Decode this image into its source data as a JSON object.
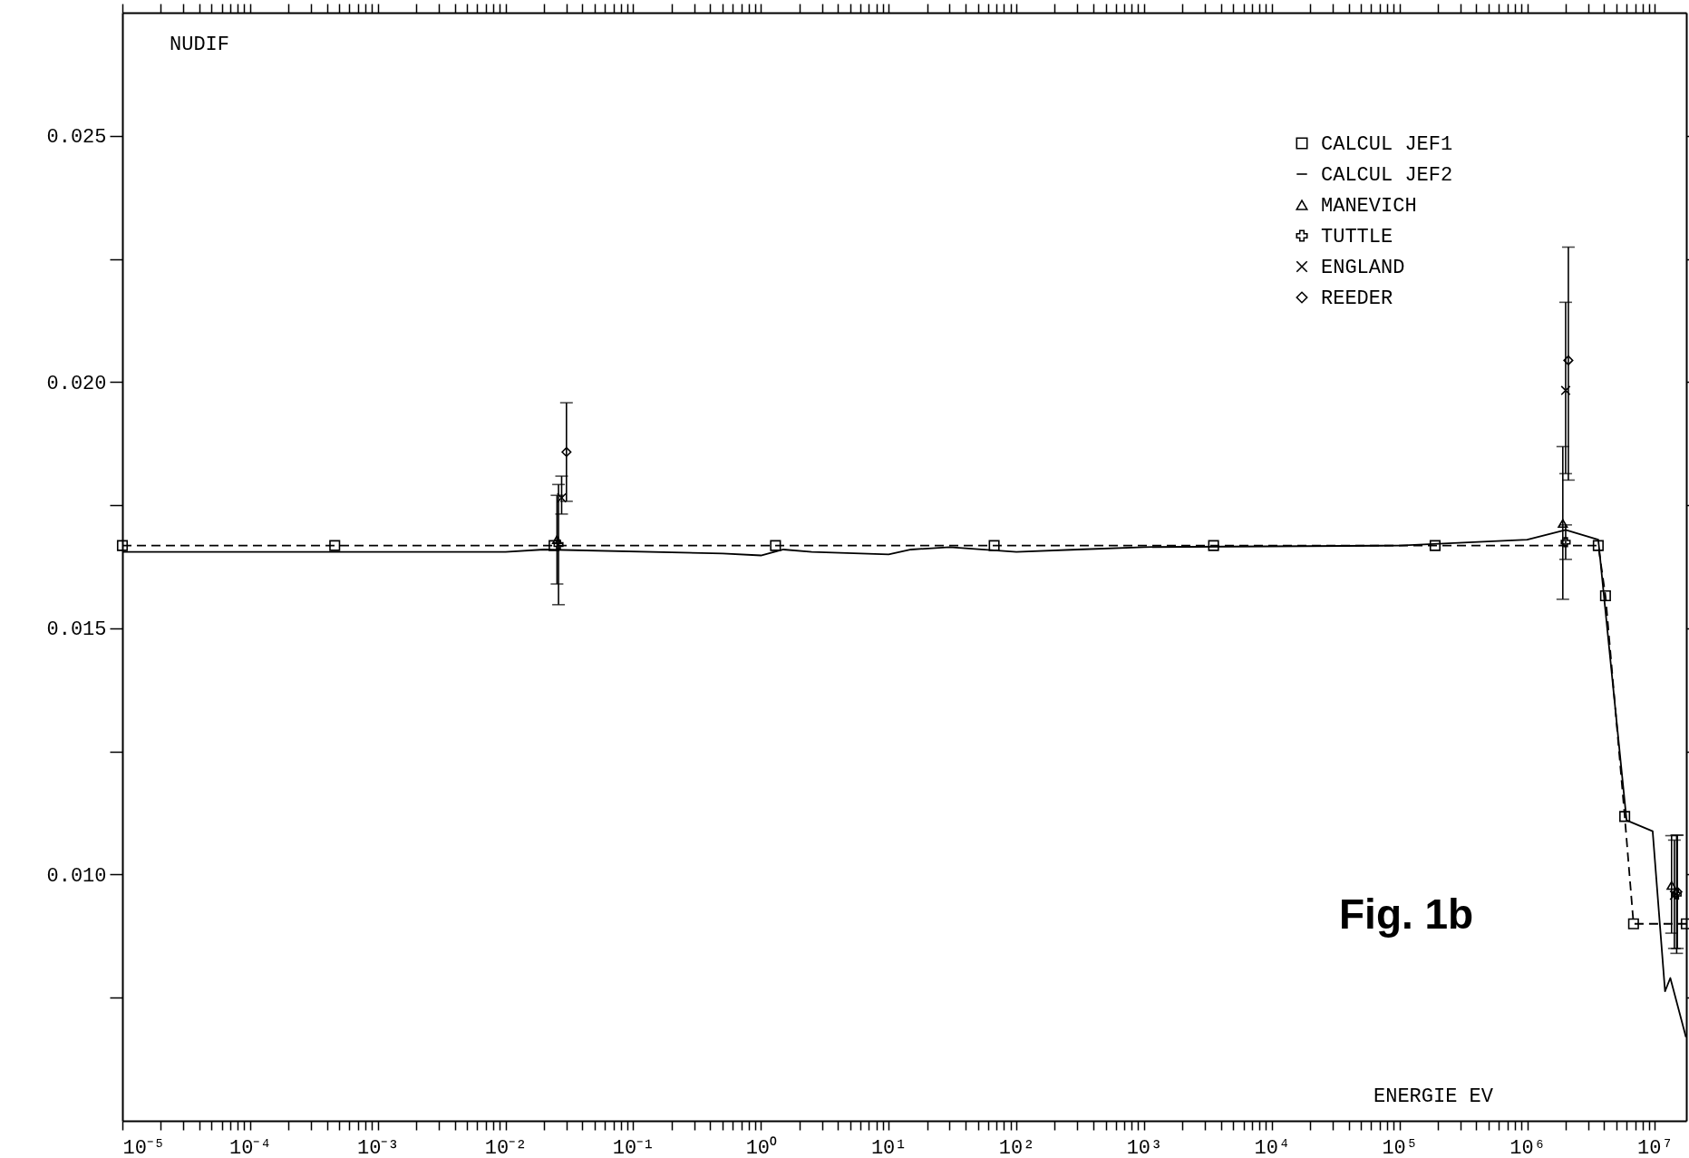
{
  "chart_data": {
    "type": "line",
    "ylabel": "NUDIF",
    "xlabel": "ENERGIE EV",
    "annotations": [
      "Fig. 1b"
    ],
    "log": "x",
    "xlim": [
      1e-05,
      17600000.0
    ],
    "ylim": [
      0.005,
      0.0275
    ],
    "xticks": [
      {
        "value": 1e-05,
        "label": "10⁻⁵"
      },
      {
        "value": 2e-05,
        "label": null
      },
      {
        "value": 3e-05,
        "label": null
      },
      {
        "value": 4e-05,
        "label": null
      },
      {
        "value": 5e-05,
        "label": null
      },
      {
        "value": 6e-05,
        "label": null
      },
      {
        "value": 7e-05,
        "label": null
      },
      {
        "value": 8e-05,
        "label": null
      },
      {
        "value": 9e-05,
        "label": null
      },
      {
        "value": 0.0001,
        "label": "10⁻⁴"
      },
      {
        "value": 0.0002,
        "label": null
      },
      {
        "value": 0.0003,
        "label": null
      },
      {
        "value": 0.0004,
        "label": null
      },
      {
        "value": 0.0005,
        "label": null
      },
      {
        "value": 0.0006,
        "label": null
      },
      {
        "value": 0.0007,
        "label": null
      },
      {
        "value": 0.0008,
        "label": null
      },
      {
        "value": 0.0009,
        "label": null
      },
      {
        "value": 0.001,
        "label": "10⁻³"
      },
      {
        "value": 0.002,
        "label": null
      },
      {
        "value": 0.003,
        "label": null
      },
      {
        "value": 0.004,
        "label": null
      },
      {
        "value": 0.005,
        "label": null
      },
      {
        "value": 0.006,
        "label": null
      },
      {
        "value": 0.007,
        "label": null
      },
      {
        "value": 0.008,
        "label": null
      },
      {
        "value": 0.009,
        "label": null
      },
      {
        "value": 0.01,
        "label": "10⁻²"
      },
      {
        "value": 0.02,
        "label": null
      },
      {
        "value": 0.03,
        "label": null
      },
      {
        "value": 0.04,
        "label": null
      },
      {
        "value": 0.05,
        "label": null
      },
      {
        "value": 0.06,
        "label": null
      },
      {
        "value": 0.07,
        "label": null
      },
      {
        "value": 0.08,
        "label": null
      },
      {
        "value": 0.09,
        "label": null
      },
      {
        "value": 0.1,
        "label": "10⁻¹"
      },
      {
        "value": 0.2,
        "label": null
      },
      {
        "value": 0.3,
        "label": null
      },
      {
        "value": 0.4,
        "label": null
      },
      {
        "value": 0.5,
        "label": null
      },
      {
        "value": 0.6,
        "label": null
      },
      {
        "value": 0.7,
        "label": null
      },
      {
        "value": 0.8,
        "label": null
      },
      {
        "value": 0.9,
        "label": null
      },
      {
        "value": 1,
        "label": "10⁰"
      },
      {
        "value": 2,
        "label": null
      },
      {
        "value": 3,
        "label": null
      },
      {
        "value": 4,
        "label": null
      },
      {
        "value": 5,
        "label": null
      },
      {
        "value": 6,
        "label": null
      },
      {
        "value": 7,
        "label": null
      },
      {
        "value": 8,
        "label": null
      },
      {
        "value": 9,
        "label": null
      },
      {
        "value": 10,
        "label": "10¹"
      },
      {
        "value": 20,
        "label": null
      },
      {
        "value": 30,
        "label": null
      },
      {
        "value": 40,
        "label": null
      },
      {
        "value": 50,
        "label": null
      },
      {
        "value": 60,
        "label": null
      },
      {
        "value": 70,
        "label": null
      },
      {
        "value": 80,
        "label": null
      },
      {
        "value": 90,
        "label": null
      },
      {
        "value": 100,
        "label": "10²"
      },
      {
        "value": 200,
        "label": null
      },
      {
        "value": 300,
        "label": null
      },
      {
        "value": 400,
        "label": null
      },
      {
        "value": 500,
        "label": null
      },
      {
        "value": 600,
        "label": null
      },
      {
        "value": 700,
        "label": null
      },
      {
        "value": 800,
        "label": null
      },
      {
        "value": 900,
        "label": null
      },
      {
        "value": 1000,
        "label": "10³"
      },
      {
        "value": 2000,
        "label": null
      },
      {
        "value": 3000,
        "label": null
      },
      {
        "value": 4000,
        "label": null
      },
      {
        "value": 5000,
        "label": null
      },
      {
        "value": 6000,
        "label": null
      },
      {
        "value": 7000,
        "label": null
      },
      {
        "value": 8000,
        "label": null
      },
      {
        "value": 9000,
        "label": null
      },
      {
        "value": 10000.0,
        "label": "10⁴"
      },
      {
        "value": 20000.0,
        "label": null
      },
      {
        "value": 30000.0,
        "label": null
      },
      {
        "value": 40000.0,
        "label": null
      },
      {
        "value": 50000.0,
        "label": null
      },
      {
        "value": 60000.0,
        "label": null
      },
      {
        "value": 70000.0,
        "label": null
      },
      {
        "value": 80000.0,
        "label": null
      },
      {
        "value": 90000.0,
        "label": null
      },
      {
        "value": 100000.0,
        "label": "10⁵"
      },
      {
        "value": 200000.0,
        "label": null
      },
      {
        "value": 300000.0,
        "label": null
      },
      {
        "value": 400000.0,
        "label": null
      },
      {
        "value": 500000.0,
        "label": null
      },
      {
        "value": 600000.0,
        "label": null
      },
      {
        "value": 700000.0,
        "label": null
      },
      {
        "value": 800000.0,
        "label": null
      },
      {
        "value": 900000.0,
        "label": null
      },
      {
        "value": 1000000.0,
        "label": "10⁶"
      },
      {
        "value": 2000000.0,
        "label": null
      },
      {
        "value": 3000000.0,
        "label": null
      },
      {
        "value": 4000000.0,
        "label": null
      },
      {
        "value": 5000000.0,
        "label": null
      },
      {
        "value": 6000000.0,
        "label": null
      },
      {
        "value": 7000000.0,
        "label": null
      },
      {
        "value": 8000000.0,
        "label": null
      },
      {
        "value": 9000000.0,
        "label": null
      },
      {
        "value": 10000000.0,
        "label": "10⁷"
      }
    ],
    "yticks": [
      {
        "value": 0.0075,
        "label": null
      },
      {
        "value": 0.01,
        "label": "0.010"
      },
      {
        "value": 0.0125,
        "label": null
      },
      {
        "value": 0.015,
        "label": "0.015"
      },
      {
        "value": 0.0175,
        "label": null
      },
      {
        "value": 0.02,
        "label": "0.020"
      },
      {
        "value": 0.0225,
        "label": null
      },
      {
        "value": 0.025,
        "label": "0.025"
      }
    ],
    "grid": false,
    "legend": "top right",
    "series": [
      {
        "name": "CALCUL JEF1",
        "color": "#000000",
        "marker": "square",
        "line_style": "dashed",
        "x": [
          1e-05,
          0.00046,
          0.024,
          1.3,
          67,
          3500,
          190000.0,
          3600000.0,
          4100000.0,
          5800000.0,
          6800000.0,
          17600000.0
        ],
        "values": [
          0.01668,
          0.01668,
          0.01668,
          0.01668,
          0.01668,
          0.01668,
          0.01668,
          0.01668,
          0.01566,
          0.01118,
          0.009,
          0.009
        ]
      },
      {
        "name": "CALCUL JEF2",
        "color": "#000000",
        "marker": "none",
        "line_style": "solid",
        "x": [
          1e-05,
          0.01,
          0.02,
          0.5,
          1.0,
          1.5,
          2.5,
          10,
          15,
          30,
          100,
          300,
          1000,
          100000.0,
          1000000.0,
          2000000.0,
          3600000.0,
          6000000.0,
          9600000.0,
          12000000.0,
          13200000.0,
          17500000.0
        ],
        "values": [
          0.01655,
          0.01655,
          0.0166,
          0.01652,
          0.01648,
          0.0166,
          0.01655,
          0.0165,
          0.0166,
          0.01665,
          0.01655,
          0.0166,
          0.01665,
          0.01668,
          0.0168,
          0.017,
          0.0168,
          0.0111,
          0.01088,
          0.00763,
          0.0079,
          0.0067
        ]
      },
      {
        "name": "MANEVICH",
        "type": "scatter",
        "color": "#000000",
        "marker": "triangle",
        "x": [
          0.0253,
          1900000.0,
          13500000.0
        ],
        "values": [
          0.0168,
          0.01713,
          0.00978
        ],
        "errors": [
          [
            0.0159,
            0.0177
          ],
          [
            0.01559,
            0.01869
          ],
          [
            0.00881,
            0.01079
          ]
        ]
      },
      {
        "name": "TUTTLE",
        "type": "scatter",
        "color": "#000000",
        "marker": "cross",
        "x": [
          0.026,
          2000000.0,
          14800000.0
        ],
        "values": [
          0.0167,
          0.01675,
          0.0096
        ],
        "errors": [
          [
            0.01548,
            0.01792
          ],
          [
            0.0164,
            0.0171
          ],
          [
            0.0084,
            0.0108
          ]
        ]
      },
      {
        "name": "ENGLAND",
        "type": "scatter",
        "color": "#000000",
        "marker": "x",
        "x": [
          0.0275,
          2000000.0,
          14200000.0
        ],
        "values": [
          0.01765,
          0.01983,
          0.00958
        ],
        "errors": [
          [
            0.01732,
            0.01809
          ],
          [
            0.01814,
            0.02162
          ],
          [
            0.0085,
            0.0107
          ]
        ]
      },
      {
        "name": "REEDER",
        "type": "scatter",
        "color": "#000000",
        "marker": "diamond",
        "x": [
          0.03,
          2100000.0,
          15000000.0
        ],
        "values": [
          0.01858,
          0.02044,
          0.00965
        ],
        "errors": [
          [
            0.01758,
            0.01958
          ],
          [
            0.01801,
            0.02274
          ],
          [
            0.0085,
            0.0108
          ]
        ]
      }
    ]
  }
}
